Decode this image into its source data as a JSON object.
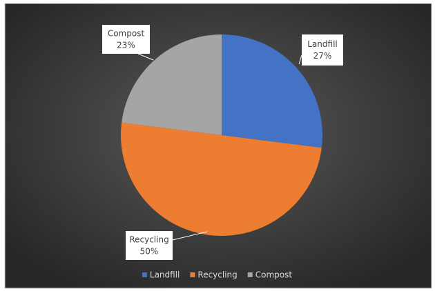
{
  "chart_data": {
    "type": "pie",
    "categories": [
      "Landfill",
      "Recycling",
      "Compost"
    ],
    "values": [
      27,
      50,
      23
    ],
    "value_labels": [
      "27%",
      "50%",
      "23%"
    ],
    "colors": [
      "#4472c4",
      "#ed7d31",
      "#a5a5a5"
    ],
    "legend": "bottom"
  }
}
